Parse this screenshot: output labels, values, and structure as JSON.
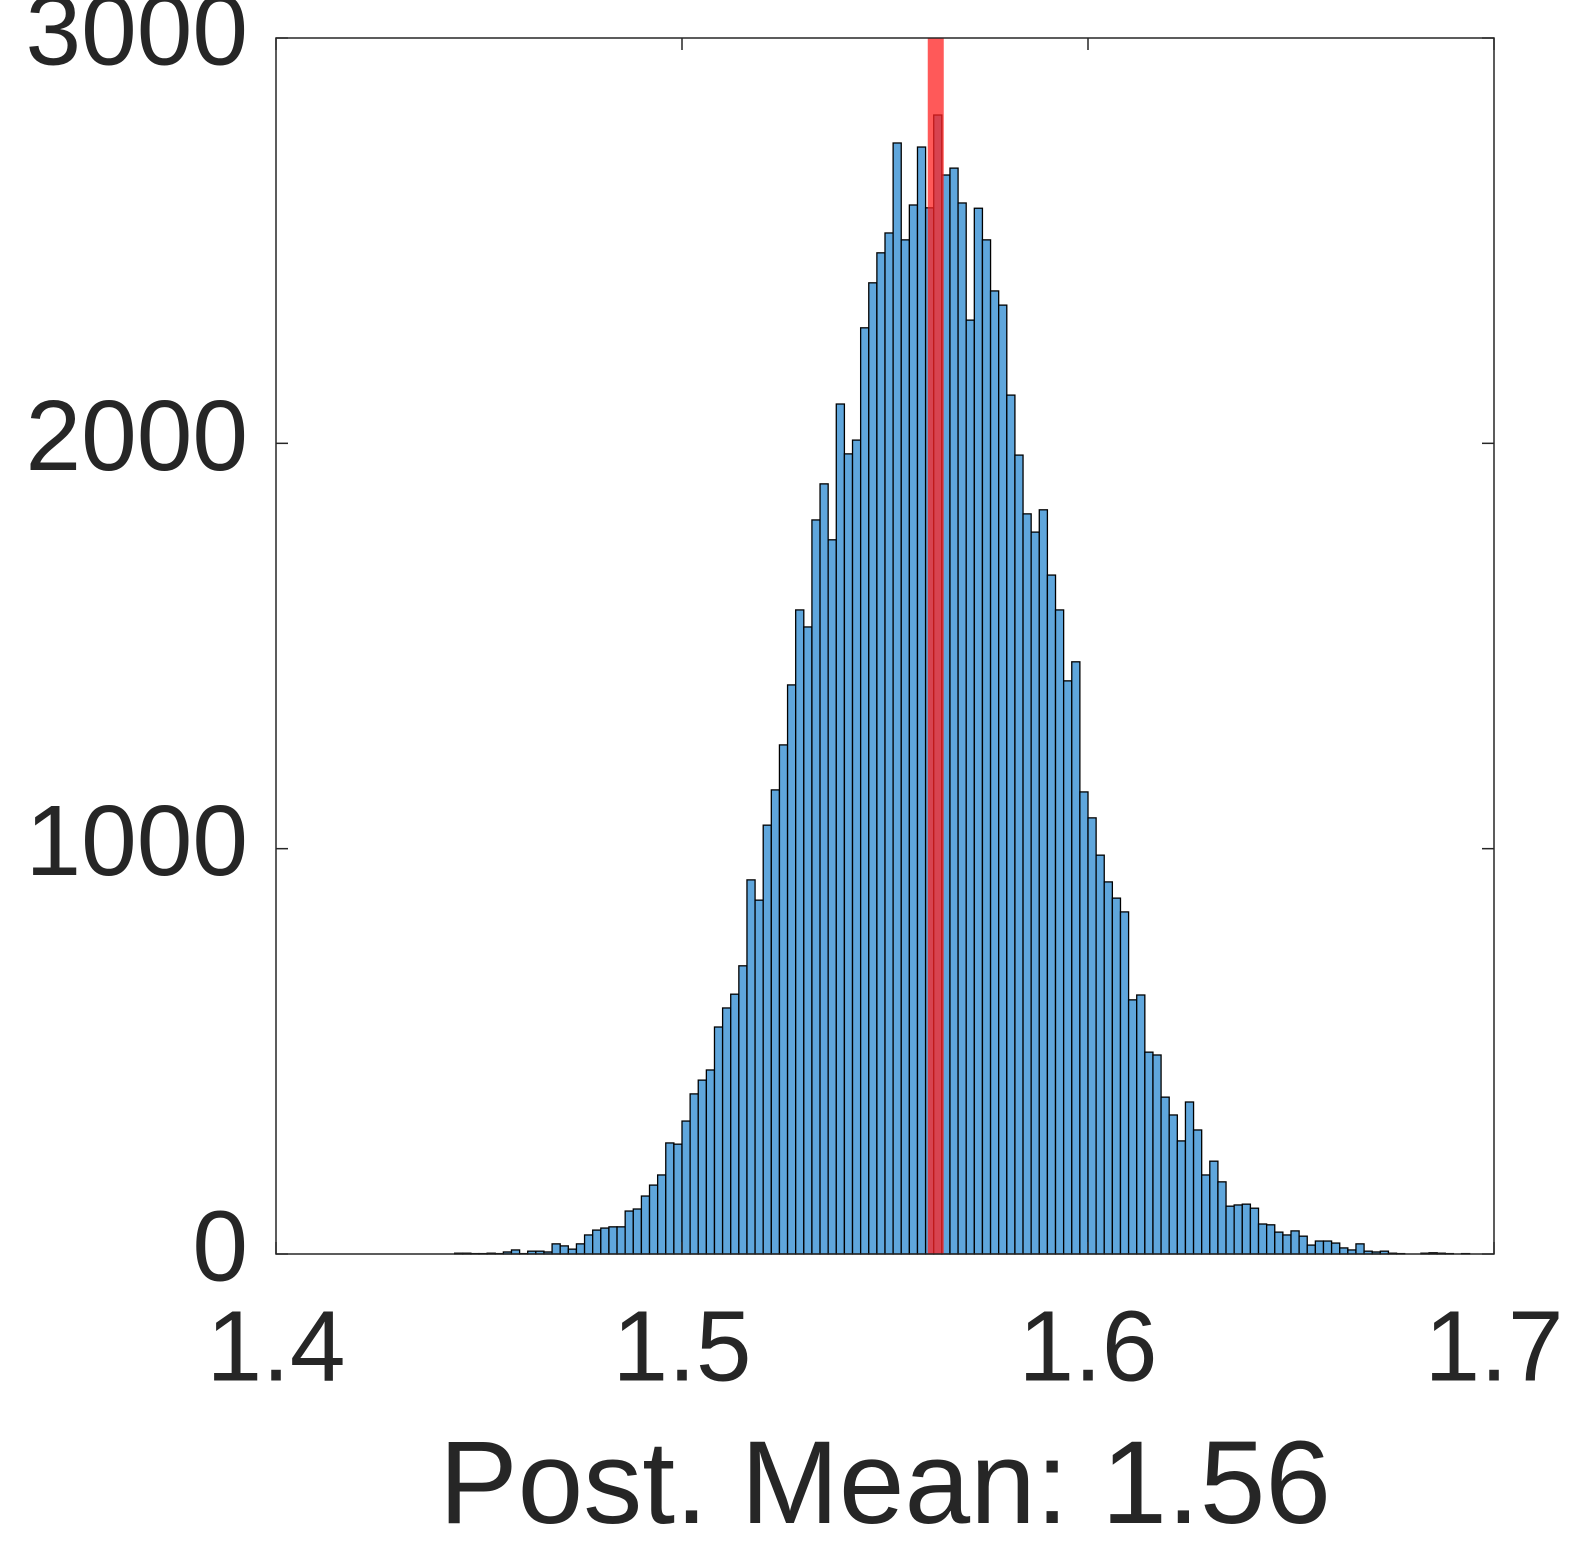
{
  "chart_data": {
    "type": "histogram",
    "xlabel": "Post. Mean: 1.56",
    "bins": [
      1.444,
      1.446,
      1.448,
      1.45,
      1.452,
      1.454,
      1.456,
      1.458,
      1.46,
      1.462,
      1.464,
      1.466,
      1.468,
      1.47,
      1.472,
      1.474,
      1.476,
      1.478,
      1.48,
      1.482,
      1.484,
      1.486,
      1.488,
      1.49,
      1.492,
      1.494,
      1.496,
      1.498,
      1.5,
      1.502,
      1.504,
      1.506,
      1.508,
      1.51,
      1.512,
      1.514,
      1.516,
      1.518,
      1.52,
      1.522,
      1.524,
      1.526,
      1.528,
      1.53,
      1.532,
      1.534,
      1.536,
      1.538,
      1.54,
      1.542,
      1.544,
      1.546,
      1.548,
      1.55,
      1.552,
      1.554,
      1.556,
      1.558,
      1.56,
      1.562,
      1.564,
      1.566,
      1.568,
      1.57,
      1.572,
      1.574,
      1.576,
      1.578,
      1.58,
      1.582,
      1.584,
      1.586,
      1.588,
      1.59,
      1.592,
      1.594,
      1.596,
      1.598,
      1.6,
      1.602,
      1.604,
      1.606,
      1.608,
      1.61,
      1.612,
      1.614,
      1.616,
      1.618,
      1.62,
      1.622,
      1.624,
      1.626,
      1.628,
      1.63,
      1.632,
      1.634,
      1.636,
      1.638,
      1.64,
      1.642,
      1.644,
      1.646,
      1.648,
      1.65,
      1.652,
      1.654,
      1.656,
      1.658,
      1.66,
      1.662,
      1.664,
      1.666,
      1.668,
      1.67,
      1.672,
      1.674,
      1.676,
      1.678,
      1.68,
      1.682,
      1.684,
      1.686,
      1.688,
      1.69,
      1.692,
      1.694
    ],
    "values": [
      2,
      2,
      1,
      1,
      2,
      1,
      5,
      10,
      1,
      7,
      7,
      5,
      25,
      20,
      12,
      25,
      47,
      59,
      64,
      67,
      67,
      106,
      111,
      143,
      170,
      195,
      274,
      271,
      328,
      395,
      429,
      454,
      560,
      607,
      641,
      711,
      923,
      873,
      1058,
      1145,
      1256,
      1404,
      1589,
      1547,
      1811,
      1900,
      1762,
      2097,
      1974,
      2008,
      2285,
      2396,
      2470,
      2519,
      2741,
      2502,
      2588,
      2731,
      2581,
      2810,
      2662,
      2679,
      2593,
      2304,
      2580,
      2502,
      2376,
      2341,
      2119,
      1971,
      1826,
      1781,
      1836,
      1675,
      1589,
      1414,
      1461,
      1140,
      1076,
      984,
      918,
      878,
      844,
      627,
      639,
      498,
      491,
      387,
      343,
      279,
      375,
      306,
      195,
      229,
      178,
      118,
      121,
      123,
      113,
      74,
      72,
      54,
      47,
      57,
      44,
      22,
      32,
      32,
      27,
      15,
      10,
      25,
      7,
      5,
      7,
      2,
      1,
      0,
      0,
      2,
      3,
      2,
      1,
      0,
      1
    ],
    "color": "#5fa6dc",
    "mean_line": 1.5625,
    "mean_line_color": "#ff2222",
    "xlim": [
      1.4,
      1.7
    ],
    "xticks": [
      1.4,
      1.5,
      1.6,
      1.7
    ],
    "ylim": [
      0,
      3000
    ],
    "yticks": [
      0,
      1000,
      2000,
      3000
    ]
  }
}
